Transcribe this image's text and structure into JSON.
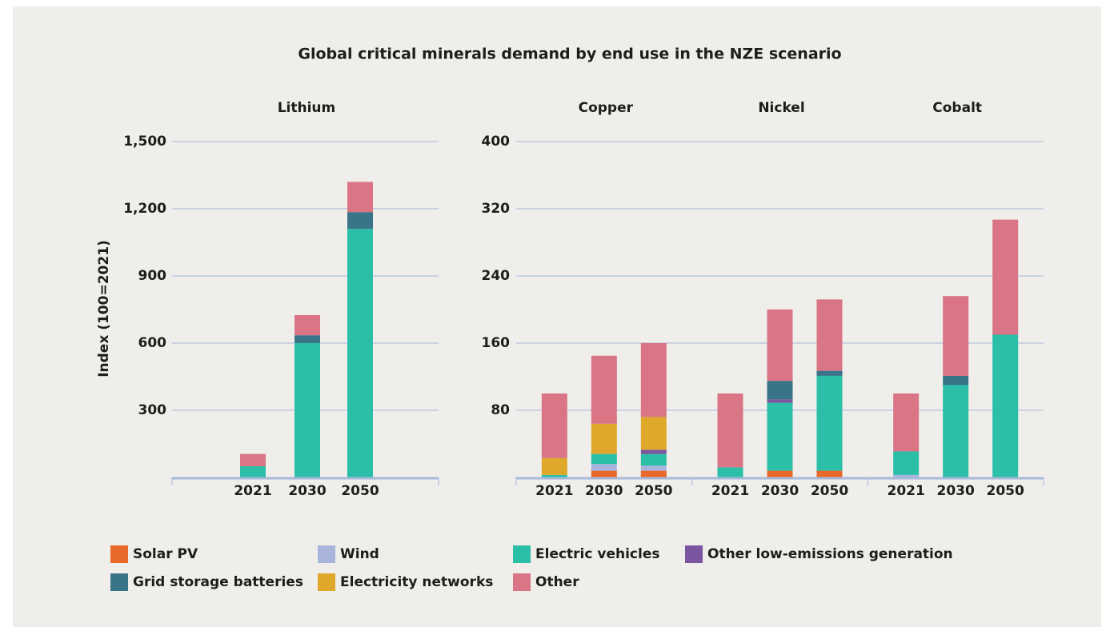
{
  "title": "Global critical minerals demand by end use in the NZE scenario",
  "chart_data": [
    {
      "type": "stacked_bar",
      "title": "Lithium",
      "ylabel": "Index (100=2021)",
      "categories": [
        "2021",
        "2030",
        "2050"
      ],
      "ylim": [
        0,
        1500
      ],
      "yticks": [
        300,
        600,
        900,
        {
          "value": 1200,
          "label": "1,200"
        },
        {
          "value": 1500,
          "label": "1,500"
        }
      ],
      "grid": true,
      "series": [
        {
          "name": "Electric vehicles",
          "color": "#2bbfa8",
          "values": [
            50,
            600,
            1110
          ]
        },
        {
          "name": "Grid storage batteries",
          "color": "#3a7488",
          "values": [
            0,
            35,
            75
          ]
        },
        {
          "name": "Other",
          "color": "#d97585",
          "values": [
            55,
            90,
            135
          ]
        }
      ]
    },
    {
      "type": "stacked_bar",
      "groups": [
        "Copper",
        "Nickel",
        "Cobalt"
      ],
      "categories": [
        "2021",
        "2030",
        "2050",
        "2021",
        "2030",
        "2050",
        "2021",
        "2030",
        "2050"
      ],
      "ylim": [
        0,
        400
      ],
      "yticks": [
        80,
        160,
        240,
        320,
        400
      ],
      "grid": true,
      "series": [
        {
          "name": "Solar PV",
          "color": "#e8692a",
          "values": [
            0,
            8,
            8,
            0,
            8,
            8,
            0,
            0,
            0
          ]
        },
        {
          "name": "Wind",
          "color": "#a9b4dd",
          "values": [
            0,
            8,
            6,
            0,
            0,
            0,
            3,
            0,
            0
          ]
        },
        {
          "name": "Electric vehicles",
          "color": "#2bbfa8",
          "values": [
            3,
            12,
            14,
            12,
            81,
            113,
            28,
            110,
            170
          ]
        },
        {
          "name": "Other low-emissions generation",
          "color": "#7b559f",
          "values": [
            0,
            0,
            5,
            0,
            4,
            0,
            0,
            0,
            0
          ]
        },
        {
          "name": "Grid storage batteries",
          "color": "#3a7488",
          "values": [
            0,
            0,
            0,
            0,
            22,
            6,
            0,
            11,
            0
          ]
        },
        {
          "name": "Electricity networks",
          "color": "#e0a82a",
          "values": [
            20,
            36,
            39,
            0,
            0,
            0,
            0,
            0,
            0
          ]
        },
        {
          "name": "Other",
          "color": "#d97585",
          "values": [
            77,
            81,
            88,
            88,
            85,
            85,
            69,
            95,
            137
          ]
        }
      ]
    }
  ]
}
